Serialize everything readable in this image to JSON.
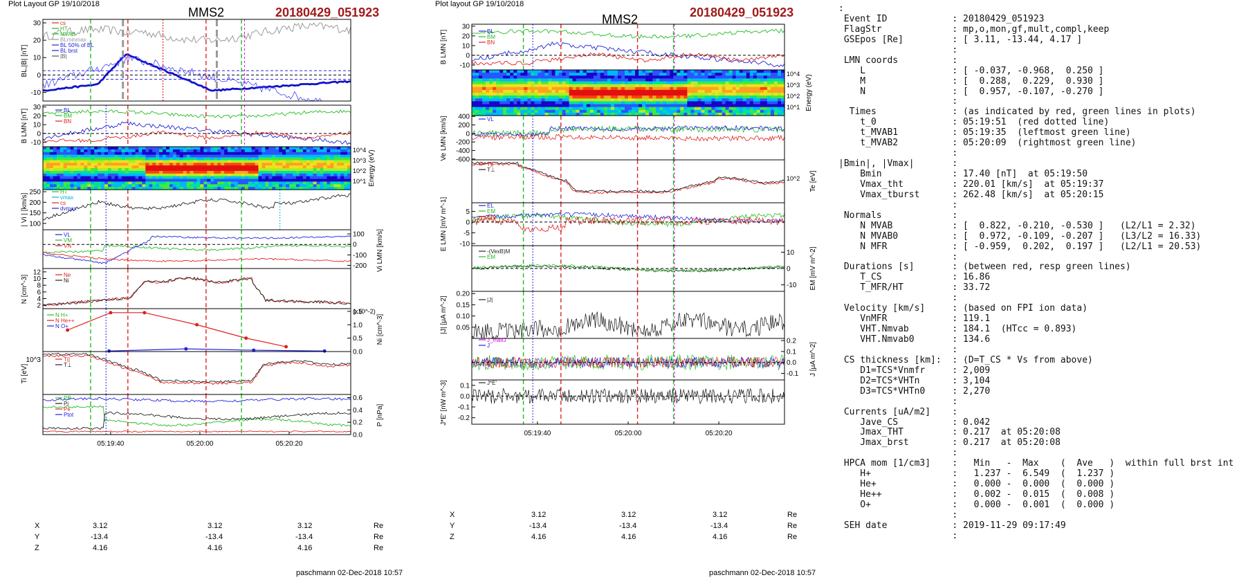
{
  "left": {
    "layout_label": "Plot Layout GP 19/10/2018",
    "title": "MMS2",
    "event": "20180429_051923",
    "footer": "paschmann 02-Dec-2018 10:57",
    "time_ticks": [
      "05:19:40",
      "05:20:00",
      "05:20:20"
    ],
    "coords": [
      {
        "name": "X",
        "values": [
          "3.12",
          "3.12",
          "3.12"
        ],
        "unit": "Re"
      },
      {
        "name": "Y",
        "values": [
          "-13.4",
          "-13.4",
          "-13.4"
        ],
        "unit": "Re"
      },
      {
        "name": "Z",
        "values": [
          "4.16",
          "4.16",
          "4.16"
        ],
        "unit": "Re"
      }
    ]
  },
  "middle": {
    "layout_label": "Plot layout GP 19/10/2018",
    "title": "MMS2",
    "event": "20180429_051923",
    "footer": "paschmann 02-Dec-2018 10:57",
    "time_ticks": [
      "05:19:40",
      "05:20:00",
      "05:20:20"
    ],
    "coords": [
      {
        "name": "X",
        "values": [
          "3.12",
          "3.12",
          "3.12"
        ],
        "unit": "Re"
      },
      {
        "name": "Y",
        "values": [
          "-13.4",
          "-13.4",
          "-13.4"
        ],
        "unit": "Re"
      },
      {
        "name": "Z",
        "values": [
          "4.16",
          "4.16",
          "4.16"
        ],
        "unit": "Re"
      }
    ]
  },
  "colors": {
    "red": "#e02020",
    "green": "#22bb22",
    "blue": "#2020e0",
    "black": "#000000",
    "magenta": "#e000e0",
    "cyan": "#00b0d0",
    "gray": "#999999",
    "dark_red": "#a11a1a"
  },
  "chart_data": [
    {
      "type": "line",
      "panel": "left-1",
      "ylabel": "BL,|B| [nT]",
      "yticks": [
        "30",
        "20",
        "10",
        "0",
        "-10"
      ],
      "ylim": [
        -15,
        32
      ],
      "legend": [
        "cs",
        "HT",
        "MVAB",
        "BLminmax",
        "BL 50% of BL",
        "BL brst",
        "|B|"
      ]
    },
    {
      "type": "line",
      "panel": "left-2",
      "ylabel": "B LMN [nT]",
      "yticks": [
        "30",
        "20",
        "10",
        "0",
        "-10"
      ],
      "ylim": [
        -15,
        32
      ],
      "legend": [
        "BL",
        "BM",
        "BN"
      ]
    },
    {
      "type": "heatmap",
      "panel": "left-3",
      "ylabel": "Energy (eV)",
      "yticks": [
        "10^4",
        "10^3",
        "10^2",
        "10^1"
      ]
    },
    {
      "type": "line",
      "panel": "left-4",
      "ylabel": "| Vi | [km/s]",
      "yticks": [
        "250",
        "200",
        "150",
        "100"
      ],
      "ylim": [
        70,
        260
      ],
      "legend": [
        "HT",
        "vmax",
        "cs",
        "dvmax"
      ]
    },
    {
      "type": "line",
      "panel": "left-5",
      "ylabel": "Vi LMN [km/s]",
      "yticks": [
        "100",
        "0",
        "-100",
        "-200"
      ],
      "ylim": [
        -230,
        140
      ],
      "legend": [
        "VL",
        "VM",
        "VN"
      ]
    },
    {
      "type": "line",
      "panel": "left-6",
      "ylabel": "N [cm^-3]",
      "yticks": [
        "12",
        "10",
        "8",
        "6",
        "4",
        "2"
      ],
      "ylim": [
        1,
        13
      ],
      "legend": [
        "Ne",
        "Ni"
      ]
    },
    {
      "type": "scatter",
      "panel": "left-7",
      "ylabel": "Ni [cm^-3]",
      "yticks": [
        "1.5",
        "1.0",
        "0.5",
        "0.0"
      ],
      "ylim": [
        0,
        1.6
      ],
      "scale_note": "(x10^-2)",
      "legend": [
        "N H+",
        "N He++",
        "N O+"
      ],
      "series": [
        {
          "name": "N He++",
          "x": [
            "05:19:28",
            "05:19:40",
            "05:19:50",
            "05:20:00",
            "05:20:10",
            "05:20:20"
          ],
          "values": [
            0.8,
            1.45,
            1.45,
            1.0,
            0.5,
            0.18
          ]
        },
        {
          "name": "N O+",
          "x": [
            "05:19:40",
            "05:19:50",
            "05:20:00",
            "05:20:10"
          ],
          "values": [
            0.02,
            0.1,
            0.05,
            0.02
          ]
        }
      ]
    },
    {
      "type": "line",
      "panel": "left-8",
      "ylabel": "Ti [eV]",
      "yticks": [
        "10^3"
      ],
      "legend": [
        "T||",
        "T⊥"
      ]
    },
    {
      "type": "line",
      "panel": "left-9",
      "ylabel": "P [nPa]",
      "yticks": [
        "0.6",
        "0.4",
        "0.2",
        "0.0"
      ],
      "ylim": [
        0,
        0.65
      ],
      "legend": [
        "PB",
        "Pi",
        "Pe",
        "Ptot"
      ]
    },
    {
      "type": "line",
      "panel": "mid-1",
      "ylabel": "B LMN [nT]",
      "yticks": [
        "30",
        "20",
        "10",
        "0",
        "-10"
      ],
      "ylim": [
        -15,
        32
      ],
      "legend": [
        "BL",
        "BM",
        "BN"
      ]
    },
    {
      "type": "heatmap",
      "panel": "mid-2",
      "ylabel": "Energy (eV)",
      "yticks": [
        "10^4",
        "10^3",
        "10^2",
        "10^1"
      ]
    },
    {
      "type": "line",
      "panel": "mid-3",
      "ylabel": "Ve LMN [km/s]",
      "yticks": [
        "400",
        "200",
        "0",
        "-200",
        "-400",
        "-600"
      ],
      "ylim": [
        -620,
        420
      ],
      "legend": [
        "VL"
      ]
    },
    {
      "type": "line",
      "panel": "mid-4",
      "ylabel": "Te [eV]",
      "yticks": [
        "10^2"
      ],
      "legend": [
        "T||",
        "T⊥"
      ]
    },
    {
      "type": "line",
      "panel": "mid-5",
      "ylabel": "E LMN [mV m^-1]",
      "yticks": [
        "5",
        "0",
        "-5",
        "-10"
      ],
      "ylim": [
        -11,
        9
      ],
      "legend": [
        "EL",
        "EM",
        "EN"
      ]
    },
    {
      "type": "line",
      "panel": "mid-6",
      "ylabel": "EM [mV m^-2]",
      "yticks": [
        "10",
        "0",
        "-10"
      ],
      "ylim": [
        -14,
        14
      ],
      "legend": [
        "-(VexB)M",
        "EM"
      ]
    },
    {
      "type": "line",
      "panel": "mid-7",
      "ylabel": "|J| [μA m^-2]",
      "yticks": [
        "0.20",
        "0.15",
        "0.10",
        "0.05"
      ],
      "ylim": [
        0.0,
        0.21
      ],
      "legend": [
        "|J|"
      ]
    },
    {
      "type": "line",
      "panel": "mid-8",
      "ylabel": "J [μA m^-2]",
      "yticks": [
        "0.2",
        "0.1",
        "0.0",
        "-0.1"
      ],
      "ylim": [
        -0.16,
        0.22
      ],
      "legend": [
        "J_maxJ",
        "J"
      ]
    },
    {
      "type": "line",
      "panel": "mid-9",
      "ylabel": "J*E' [nW m^-3]",
      "yticks": [
        "0.1",
        "0.0",
        "-0.1",
        "-0.2"
      ],
      "ylim": [
        -0.26,
        0.15
      ],
      "legend": [
        "J*E'"
      ]
    }
  ],
  "info": {
    "rows": [
      ":",
      " Event ID            : 20180429_051923",
      " FlagStr             : mp,o,mon,gf,mult,compl,keep",
      " GSEpos [Re]         : [ 3.11, -13.44, 4.17 ]",
      "                     :",
      " LMN coords          :",
      "    L                : [ -0.037, -0.968,  0.250 ]",
      "    M                : [  0.288,  0.229,  0.930 ]",
      "    N                : [  0.957, -0.107, -0.270 ]",
      "                     :",
      "  Times              : (as indicated by red, green lines in plots)",
      "    t_0              : 05:19:51  (red dotted line)",
      "    t_MVAB1          : 05:19:35  (leftmost green line)",
      "    t_MVAB2          : 05:20:09  (rightmost green line)",
      "                     :",
      "|Bmin|, |Vmax|       :",
      "    Bmin             : 17.40 [nT]  at 05:19:50",
      "    Vmax_tht         : 220.01 [km/s]  at 05:19:37",
      "    Vmax_tburst      : 262.48 [km/s]  at 05:20:15",
      "                     :",
      " Normals             :",
      "    N MVAB           : [  0.822, -0.210, -0.530 ]   (L2/L1 = 2.32)",
      "    N MVAB0          : [  0.972, -0.109, -0.207 ]   (L3/L2 = 16.33)",
      "    N MFR            : [ -0.959,  0.202,  0.197 ]   (L2/L1 = 20.53)",
      "                     :",
      " Durations [s]       : (between red, resp green lines)",
      "    T_CS             : 16.86",
      "    T_MFR/HT         : 33.72",
      "                     :",
      " Velocity [km/s]     : (based on FPI ion data)",
      "    VnMFR            : 119.1",
      "    VHT.Nmvab        : 184.1  (HTcc = 0.893)",
      "    VHT.Nmvab0       : 134.6",
      "                     :",
      " CS thickness [km]:  : (D=T_CS * Vs from above)",
      "    D1=TCS*Vnmfr     : 2,009",
      "    D2=TCS*VHTn      : 3,104",
      "    D3=TCS*VHTn0     : 2,270",
      "                     :",
      " Currents [uA/m2]    :",
      "    Jave_CS          : 0.042",
      "    Jmax_THT         : 0.217  at 05:20:08",
      "    Jmax_brst        : 0.217  at 05:20:08",
      "                     :",
      " HPCA mom [1/cm3]    :   Min   -  Max    (  Ave   )  within full brst int",
      "    H+               :   1.237 -  6.549  (  1.237 )",
      "    He+              :   0.000 -  0.000  (  0.000 )",
      "    He++             :   0.002 -  0.015  (  0.008 )",
      "    O+               :   0.000 -  0.001  (  0.000 )",
      "                     :",
      " SEH date            : 2019-11-29 09:17:49",
      "                     :"
    ]
  }
}
